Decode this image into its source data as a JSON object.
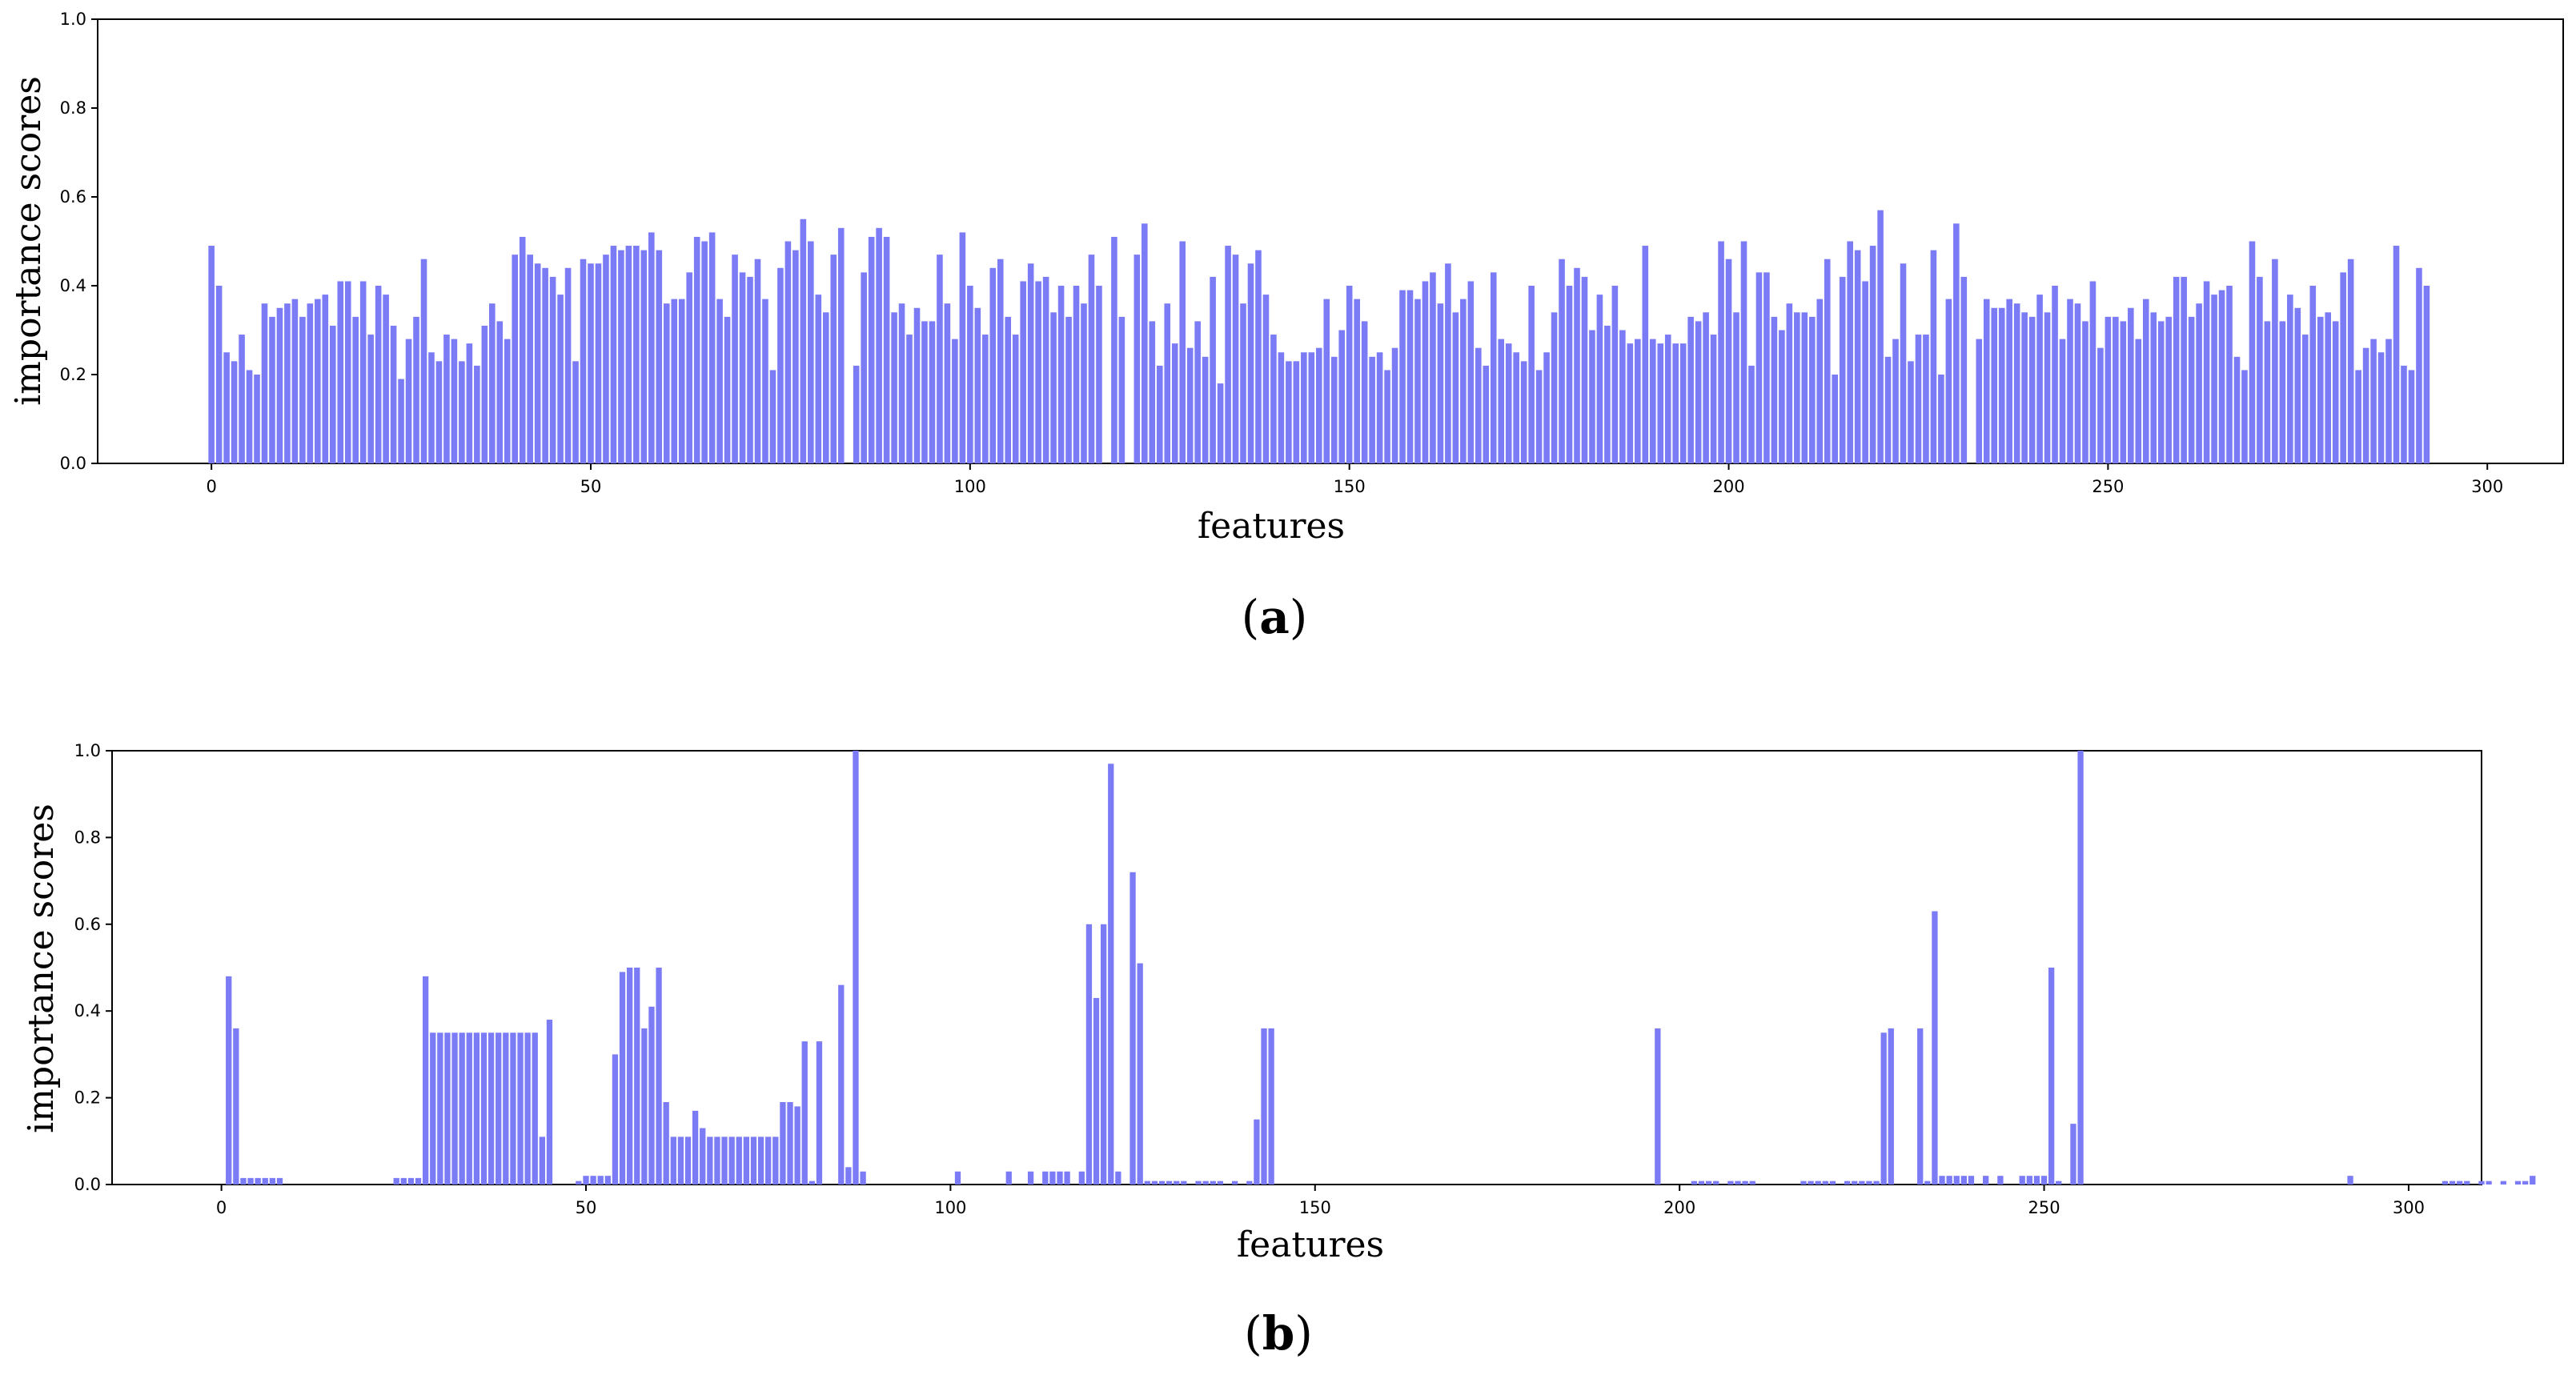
{
  "chart_data": [
    {
      "type": "bar",
      "panel_label": "a",
      "xlabel": "features",
      "ylabel": "importance scores",
      "xlim": [
        -15,
        310
      ],
      "ylim": [
        0,
        1.0
      ],
      "xticks": [
        0,
        50,
        100,
        150,
        200,
        250,
        300
      ],
      "yticks": [
        0.0,
        0.2,
        0.4,
        0.6,
        0.8,
        1.0
      ],
      "bar_color": "#7b7bf5",
      "x_start": 0,
      "values": [
        0.49,
        0.4,
        0.25,
        0.23,
        0.29,
        0.21,
        0.2,
        0.36,
        0.33,
        0.35,
        0.36,
        0.37,
        0.33,
        0.36,
        0.37,
        0.38,
        0.31,
        0.41,
        0.41,
        0.33,
        0.41,
        0.29,
        0.4,
        0.38,
        0.31,
        0.19,
        0.28,
        0.33,
        0.46,
        0.25,
        0.23,
        0.29,
        0.28,
        0.23,
        0.27,
        0.22,
        0.31,
        0.36,
        0.32,
        0.28,
        0.47,
        0.51,
        0.47,
        0.45,
        0.44,
        0.42,
        0.38,
        0.44,
        0.23,
        0.46,
        0.45,
        0.45,
        0.47,
        0.49,
        0.48,
        0.49,
        0.49,
        0.48,
        0.52,
        0.48,
        0.36,
        0.37,
        0.37,
        0.43,
        0.51,
        0.5,
        0.52,
        0.37,
        0.33,
        0.47,
        0.43,
        0.42,
        0.46,
        0.37,
        0.21,
        0.44,
        0.5,
        0.48,
        0.55,
        0.5,
        0.38,
        0.34,
        0.47,
        0.53,
        0.0,
        0.22,
        0.43,
        0.51,
        0.53,
        0.51,
        0.34,
        0.36,
        0.29,
        0.35,
        0.32,
        0.32,
        0.47,
        0.36,
        0.28,
        0.52,
        0.4,
        0.35,
        0.29,
        0.44,
        0.46,
        0.33,
        0.29,
        0.41,
        0.45,
        0.41,
        0.42,
        0.34,
        0.4,
        0.33,
        0.4,
        0.36,
        0.47,
        0.4,
        0.0,
        0.51,
        0.33,
        0.0,
        0.47,
        0.54,
        0.32,
        0.22,
        0.36,
        0.27,
        0.5,
        0.26,
        0.32,
        0.24,
        0.42,
        0.18,
        0.49,
        0.47,
        0.36,
        0.45,
        0.48,
        0.38,
        0.29,
        0.25,
        0.23,
        0.23,
        0.25,
        0.25,
        0.26,
        0.37,
        0.24,
        0.3,
        0.4,
        0.37,
        0.32,
        0.24,
        0.25,
        0.21,
        0.26,
        0.39,
        0.39,
        0.37,
        0.41,
        0.43,
        0.36,
        0.45,
        0.34,
        0.37,
        0.41,
        0.26,
        0.22,
        0.43,
        0.28,
        0.27,
        0.25,
        0.23,
        0.4,
        0.21,
        0.25,
        0.34,
        0.46,
        0.4,
        0.44,
        0.42,
        0.3,
        0.38,
        0.31,
        0.4,
        0.3,
        0.27,
        0.28,
        0.49,
        0.28,
        0.27,
        0.29,
        0.27,
        0.27,
        0.33,
        0.32,
        0.34,
        0.29,
        0.5,
        0.46,
        0.34,
        0.5,
        0.22,
        0.43,
        0.43,
        0.33,
        0.3,
        0.36,
        0.34,
        0.34,
        0.33,
        0.37,
        0.46,
        0.2,
        0.42,
        0.5,
        0.48,
        0.41,
        0.49,
        0.57,
        0.24,
        0.28,
        0.45,
        0.23,
        0.29,
        0.29,
        0.48,
        0.2,
        0.37,
        0.54,
        0.42,
        0.0,
        0.28,
        0.37,
        0.35,
        0.35,
        0.37,
        0.36,
        0.34,
        0.33,
        0.38,
        0.34,
        0.4,
        0.28,
        0.37,
        0.36,
        0.32,
        0.41,
        0.26,
        0.33,
        0.33,
        0.32,
        0.35,
        0.28,
        0.37,
        0.34,
        0.32,
        0.33,
        0.42,
        0.42,
        0.33,
        0.36,
        0.41,
        0.38,
        0.39,
        0.4,
        0.24,
        0.21,
        0.5,
        0.42,
        0.32,
        0.46,
        0.32,
        0.38,
        0.35,
        0.29,
        0.4,
        0.33,
        0.34,
        0.32,
        0.43,
        0.46,
        0.21,
        0.26,
        0.28,
        0.25,
        0.28,
        0.49,
        0.22,
        0.21,
        0.44,
        0.4
      ]
    },
    {
      "type": "bar",
      "panel_label": "b",
      "xlabel": "features",
      "ylabel": "importance scores",
      "xlim": [
        -15,
        310
      ],
      "ylim": [
        0,
        1.0
      ],
      "xticks": [
        0,
        50,
        100,
        150,
        200,
        250,
        300
      ],
      "yticks": [
        0.0,
        0.2,
        0.4,
        0.6,
        0.8,
        1.0
      ],
      "bar_color": "#7b7bf5",
      "x_start": 0,
      "values": [
        0,
        0.48,
        0.36,
        0.015,
        0.015,
        0.015,
        0.015,
        0.015,
        0.015,
        0,
        0,
        0,
        0,
        0,
        0,
        0,
        0,
        0,
        0,
        0,
        0,
        0,
        0,
        0,
        0.015,
        0.015,
        0.015,
        0.015,
        0.48,
        0.35,
        0.35,
        0.35,
        0.35,
        0.35,
        0.35,
        0.35,
        0.35,
        0.35,
        0.35,
        0.35,
        0.35,
        0.35,
        0.35,
        0.35,
        0.11,
        0.38,
        0,
        0,
        0,
        0.008,
        0.02,
        0.02,
        0.02,
        0.02,
        0.3,
        0.49,
        0.5,
        0.5,
        0.36,
        0.41,
        0.5,
        0.19,
        0.11,
        0.11,
        0.11,
        0.17,
        0.13,
        0.11,
        0.11,
        0.11,
        0.11,
        0.11,
        0.11,
        0.11,
        0.11,
        0.11,
        0.11,
        0.19,
        0.19,
        0.18,
        0.33,
        0.008,
        0.33,
        0,
        0,
        0.46,
        0.04,
        1.0,
        0.03,
        0,
        0,
        0,
        0,
        0,
        0,
        0,
        0,
        0,
        0,
        0,
        0,
        0.03,
        0,
        0,
        0,
        0,
        0,
        0,
        0.03,
        0,
        0,
        0.03,
        0,
        0.03,
        0.03,
        0.03,
        0.03,
        0,
        0.03,
        0.6,
        0.43,
        0.6,
        0.97,
        0.03,
        0,
        0.72,
        0.51,
        0.008,
        0.008,
        0.008,
        0.008,
        0.008,
        0.008,
        0,
        0.008,
        0.008,
        0.008,
        0.008,
        0,
        0.008,
        0,
        0.008,
        0.15,
        0.36,
        0.36,
        0,
        0,
        0,
        0,
        0,
        0,
        0,
        0,
        0,
        0,
        0,
        0,
        0,
        0,
        0,
        0,
        0,
        0,
        0,
        0,
        0,
        0,
        0,
        0,
        0,
        0,
        0,
        0,
        0,
        0,
        0,
        0,
        0,
        0,
        0,
        0,
        0,
        0,
        0,
        0,
        0,
        0,
        0,
        0,
        0,
        0,
        0,
        0,
        0,
        0,
        0,
        0,
        0.36,
        0,
        0,
        0,
        0,
        0.008,
        0.008,
        0.008,
        0.008,
        0,
        0.008,
        0.008,
        0.008,
        0.008,
        0,
        0,
        0,
        0,
        0,
        0,
        0.008,
        0.008,
        0.008,
        0.008,
        0.008,
        0,
        0.008,
        0.008,
        0.008,
        0.008,
        0.008,
        0.35,
        0.36,
        0,
        0,
        0,
        0.36,
        0.008,
        0.63,
        0.02,
        0.02,
        0.02,
        0.02,
        0.02,
        0,
        0.02,
        0,
        0.02,
        0,
        0,
        0.02,
        0.02,
        0.02,
        0.02,
        0.5,
        0.008,
        0,
        0.14,
        1.0,
        0,
        0,
        0,
        0,
        0,
        0,
        0,
        0,
        0,
        0,
        0,
        0,
        0,
        0,
        0,
        0,
        0,
        0,
        0,
        0,
        0,
        0,
        0,
        0,
        0,
        0,
        0,
        0,
        0,
        0,
        0,
        0,
        0,
        0,
        0,
        0,
        0.02,
        0,
        0,
        0,
        0,
        0,
        0,
        0,
        0,
        0,
        0,
        0,
        0,
        0.008,
        0.008,
        0.008,
        0.008,
        0,
        0.008,
        0.008,
        0,
        0.008,
        0,
        0.008,
        0.008,
        0.02
      ]
    }
  ]
}
